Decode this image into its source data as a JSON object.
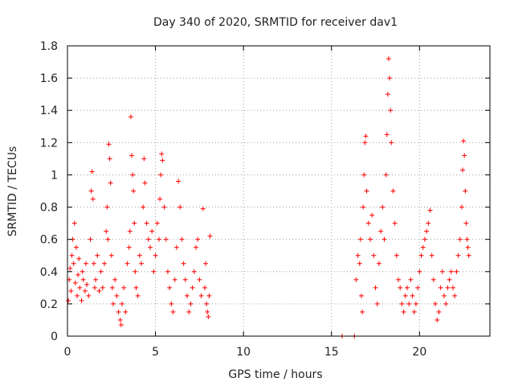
{
  "chart_data": {
    "type": "scatter",
    "title": "Day 340 of 2020, SRMTID for receiver dav1",
    "xlabel": "GPS time / hours",
    "ylabel": "SRMTID / TECUs",
    "xlim": [
      0,
      24
    ],
    "ylim": [
      0,
      1.8
    ],
    "xticks": [
      0,
      5,
      10,
      15,
      20
    ],
    "yticks": [
      0,
      0.2,
      0.4,
      0.6,
      0.8,
      1,
      1.2,
      1.4,
      1.6,
      1.8
    ],
    "ytick_labels": [
      "0",
      "0.2",
      "0.4",
      "0.6",
      "0.8",
      "1",
      "1.2",
      "1.4",
      "1.6",
      "1.8"
    ],
    "grid": true,
    "marker": "plus",
    "color": "#ff0000",
    "series": [
      {
        "name": "dav1",
        "points": [
          [
            0.05,
            0.22
          ],
          [
            0.1,
            0.35
          ],
          [
            0.15,
            0.42
          ],
          [
            0.2,
            0.28
          ],
          [
            0.25,
            0.5
          ],
          [
            0.3,
            0.6
          ],
          [
            0.35,
            0.45
          ],
          [
            0.4,
            0.7
          ],
          [
            0.45,
            0.33
          ],
          [
            0.5,
            0.55
          ],
          [
            0.55,
            0.25
          ],
          [
            0.6,
            0.38
          ],
          [
            0.65,
            0.48
          ],
          [
            0.7,
            0.3
          ],
          [
            0.8,
            0.22
          ],
          [
            0.85,
            0.4
          ],
          [
            0.9,
            0.35
          ],
          [
            1.0,
            0.28
          ],
          [
            1.05,
            0.45
          ],
          [
            1.1,
            0.32
          ],
          [
            1.2,
            0.25
          ],
          [
            1.3,
            0.6
          ],
          [
            1.35,
            0.9
          ],
          [
            1.4,
            1.02
          ],
          [
            1.45,
            0.85
          ],
          [
            1.5,
            0.45
          ],
          [
            1.55,
            0.3
          ],
          [
            1.6,
            0.35
          ],
          [
            1.7,
            0.5
          ],
          [
            1.8,
            0.28
          ],
          [
            1.9,
            0.4
          ],
          [
            2.0,
            0.3
          ],
          [
            2.1,
            0.45
          ],
          [
            2.2,
            0.65
          ],
          [
            2.25,
            0.8
          ],
          [
            2.3,
            0.6
          ],
          [
            2.35,
            1.19
          ],
          [
            2.4,
            1.1
          ],
          [
            2.45,
            0.95
          ],
          [
            2.5,
            0.5
          ],
          [
            2.55,
            0.3
          ],
          [
            2.6,
            0.2
          ],
          [
            2.7,
            0.35
          ],
          [
            2.8,
            0.25
          ],
          [
            2.9,
            0.15
          ],
          [
            3.0,
            0.1
          ],
          [
            3.05,
            0.07
          ],
          [
            3.1,
            0.2
          ],
          [
            3.2,
            0.3
          ],
          [
            3.3,
            0.15
          ],
          [
            3.4,
            0.45
          ],
          [
            3.5,
            0.55
          ],
          [
            3.55,
            0.65
          ],
          [
            3.6,
            1.36
          ],
          [
            3.65,
            1.12
          ],
          [
            3.7,
            1.0
          ],
          [
            3.75,
            0.9
          ],
          [
            3.8,
            0.7
          ],
          [
            3.85,
            0.4
          ],
          [
            3.9,
            0.3
          ],
          [
            4.0,
            0.25
          ],
          [
            4.1,
            0.5
          ],
          [
            4.2,
            0.45
          ],
          [
            4.3,
            0.8
          ],
          [
            4.35,
            1.1
          ],
          [
            4.4,
            0.95
          ],
          [
            4.5,
            0.7
          ],
          [
            4.6,
            0.6
          ],
          [
            4.7,
            0.55
          ],
          [
            4.8,
            0.65
          ],
          [
            4.9,
            0.4
          ],
          [
            5.0,
            0.5
          ],
          [
            5.1,
            0.7
          ],
          [
            5.2,
            0.6
          ],
          [
            5.25,
            0.85
          ],
          [
            5.3,
            1.0
          ],
          [
            5.35,
            1.13
          ],
          [
            5.4,
            1.09
          ],
          [
            5.5,
            0.8
          ],
          [
            5.6,
            0.6
          ],
          [
            5.7,
            0.4
          ],
          [
            5.8,
            0.3
          ],
          [
            5.9,
            0.2
          ],
          [
            6.0,
            0.15
          ],
          [
            6.1,
            0.35
          ],
          [
            6.2,
            0.55
          ],
          [
            6.3,
            0.96
          ],
          [
            6.4,
            0.8
          ],
          [
            6.5,
            0.6
          ],
          [
            6.6,
            0.45
          ],
          [
            6.7,
            0.35
          ],
          [
            6.8,
            0.25
          ],
          [
            6.9,
            0.15
          ],
          [
            7.0,
            0.2
          ],
          [
            7.1,
            0.3
          ],
          [
            7.2,
            0.4
          ],
          [
            7.3,
            0.55
          ],
          [
            7.4,
            0.6
          ],
          [
            7.5,
            0.35
          ],
          [
            7.6,
            0.25
          ],
          [
            7.7,
            0.79
          ],
          [
            7.8,
            0.3
          ],
          [
            7.85,
            0.45
          ],
          [
            7.9,
            0.2
          ],
          [
            7.95,
            0.15
          ],
          [
            8.0,
            0.12
          ],
          [
            8.05,
            0.25
          ],
          [
            8.1,
            0.62
          ],
          [
            15.6,
            0.0
          ],
          [
            16.3,
            0.0
          ],
          [
            16.4,
            0.35
          ],
          [
            16.5,
            0.5
          ],
          [
            16.6,
            0.45
          ],
          [
            16.65,
            0.6
          ],
          [
            16.7,
            0.25
          ],
          [
            16.75,
            0.15
          ],
          [
            16.8,
            0.8
          ],
          [
            16.85,
            1.0
          ],
          [
            16.9,
            1.2
          ],
          [
            16.95,
            1.24
          ],
          [
            17.0,
            0.9
          ],
          [
            17.1,
            0.7
          ],
          [
            17.2,
            0.6
          ],
          [
            17.3,
            0.75
          ],
          [
            17.4,
            0.5
          ],
          [
            17.5,
            0.3
          ],
          [
            17.6,
            0.2
          ],
          [
            17.7,
            0.45
          ],
          [
            17.8,
            0.65
          ],
          [
            17.9,
            0.8
          ],
          [
            18.0,
            0.6
          ],
          [
            18.1,
            1.0
          ],
          [
            18.15,
            1.25
          ],
          [
            18.2,
            1.5
          ],
          [
            18.25,
            1.72
          ],
          [
            18.3,
            1.6
          ],
          [
            18.35,
            1.4
          ],
          [
            18.4,
            1.2
          ],
          [
            18.5,
            0.9
          ],
          [
            18.6,
            0.7
          ],
          [
            18.7,
            0.5
          ],
          [
            18.8,
            0.35
          ],
          [
            18.9,
            0.3
          ],
          [
            19.0,
            0.2
          ],
          [
            19.1,
            0.15
          ],
          [
            19.2,
            0.25
          ],
          [
            19.3,
            0.3
          ],
          [
            19.4,
            0.2
          ],
          [
            19.5,
            0.35
          ],
          [
            19.6,
            0.25
          ],
          [
            19.7,
            0.15
          ],
          [
            19.8,
            0.2
          ],
          [
            19.9,
            0.3
          ],
          [
            20.0,
            0.4
          ],
          [
            20.1,
            0.5
          ],
          [
            20.2,
            0.55
          ],
          [
            20.3,
            0.6
          ],
          [
            20.4,
            0.65
          ],
          [
            20.5,
            0.7
          ],
          [
            20.6,
            0.78
          ],
          [
            20.7,
            0.5
          ],
          [
            20.8,
            0.35
          ],
          [
            20.9,
            0.2
          ],
          [
            21.0,
            0.1
          ],
          [
            21.1,
            0.15
          ],
          [
            21.2,
            0.3
          ],
          [
            21.3,
            0.4
          ],
          [
            21.4,
            0.25
          ],
          [
            21.5,
            0.2
          ],
          [
            21.6,
            0.3
          ],
          [
            21.7,
            0.35
          ],
          [
            21.8,
            0.4
          ],
          [
            21.9,
            0.3
          ],
          [
            22.0,
            0.25
          ],
          [
            22.1,
            0.4
          ],
          [
            22.2,
            0.5
          ],
          [
            22.3,
            0.6
          ],
          [
            22.4,
            0.8
          ],
          [
            22.45,
            1.03
          ],
          [
            22.5,
            1.21
          ],
          [
            22.55,
            1.12
          ],
          [
            22.6,
            0.9
          ],
          [
            22.65,
            0.7
          ],
          [
            22.7,
            0.6
          ],
          [
            22.75,
            0.55
          ],
          [
            22.8,
            0.5
          ]
        ]
      }
    ]
  }
}
